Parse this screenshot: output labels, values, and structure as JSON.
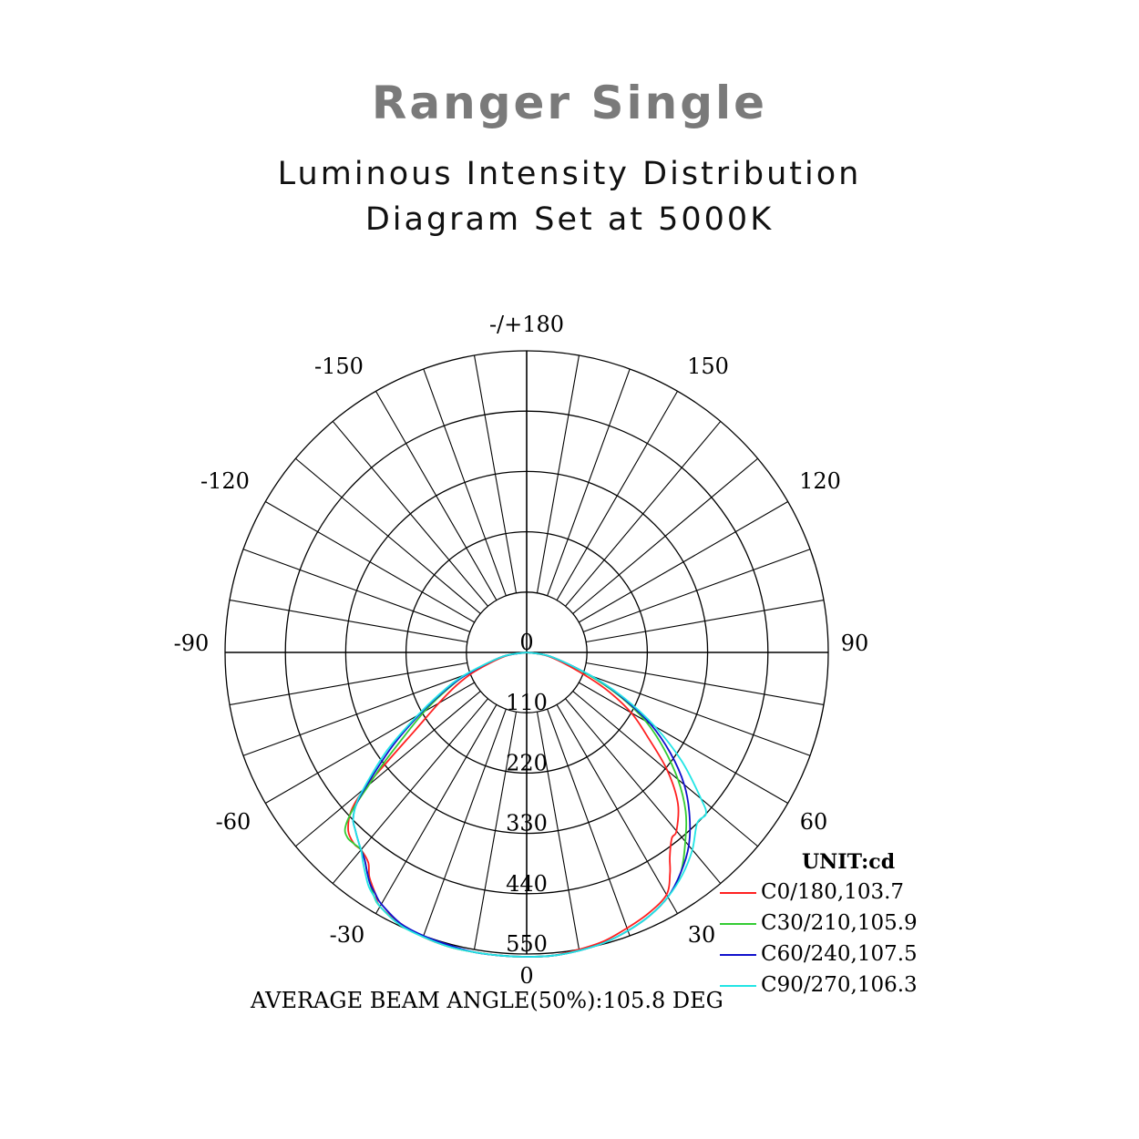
{
  "header": {
    "title": "Ranger Single",
    "subtitle_line1": "Luminous Intensity Distribution",
    "subtitle_line2": "Diagram Set at 5000K"
  },
  "chart_data": {
    "type": "polar",
    "angle_labels": [
      {
        "text": "-/+180",
        "angle": 180
      },
      {
        "text": "-150",
        "angle": -150
      },
      {
        "text": "150",
        "angle": 150
      },
      {
        "text": "-120",
        "angle": -120
      },
      {
        "text": "120",
        "angle": 120
      },
      {
        "text": "-90",
        "angle": -90
      },
      {
        "text": "90",
        "angle": 90
      },
      {
        "text": "-60",
        "angle": -60
      },
      {
        "text": "60",
        "angle": 60
      },
      {
        "text": "-30",
        "angle": -30
      },
      {
        "text": "30",
        "angle": 30
      },
      {
        "text": "0",
        "angle": 0
      }
    ],
    "radial_ticks": [
      "0",
      "110",
      "220",
      "330",
      "440",
      "550"
    ],
    "radial_max": 550,
    "unit_label": "UNIT:cd",
    "footer": "AVERAGE BEAM ANGLE(50%):105.8 DEG",
    "series": [
      {
        "name": "C0/180,103.7",
        "color": "#ff2020",
        "angles": [
          -90,
          -80,
          -70,
          -65,
          -60,
          -55,
          -52,
          -50,
          -48,
          -45,
          -42,
          -40,
          -37,
          -35,
          -32,
          -30,
          -25,
          -20,
          -15,
          -10,
          -5,
          0,
          5,
          10,
          15,
          20,
          25,
          30,
          33,
          35,
          38,
          40,
          45,
          50,
          55,
          60,
          65,
          70,
          80,
          90
        ],
        "values": [
          0,
          40,
          100,
          140,
          185,
          250,
          320,
          385,
          430,
          460,
          470,
          470,
          480,
          500,
          520,
          535,
          545,
          552,
          555,
          555,
          555,
          555,
          555,
          550,
          545,
          535,
          525,
          510,
          480,
          455,
          430,
          425,
          390,
          335,
          270,
          220,
          160,
          100,
          40,
          0
        ]
      },
      {
        "name": "C30/210,105.9",
        "color": "#33cc33",
        "angles": [
          -90,
          -80,
          -70,
          -65,
          -60,
          -55,
          -52,
          -50,
          -48,
          -46,
          -44,
          -42,
          -40,
          -38,
          -36,
          -34,
          -32,
          -30,
          -25,
          -20,
          -15,
          -10,
          -5,
          0,
          5,
          10,
          15,
          20,
          25,
          30,
          35,
          40,
          45,
          50,
          55,
          60,
          65,
          70,
          80,
          90
        ],
        "values": [
          0,
          45,
          115,
          160,
          215,
          280,
          335,
          375,
          425,
          460,
          470,
          470,
          470,
          480,
          495,
          510,
          525,
          535,
          548,
          552,
          555,
          555,
          555,
          555,
          555,
          552,
          548,
          540,
          530,
          515,
          490,
          450,
          410,
          360,
          305,
          250,
          185,
          120,
          45,
          0
        ]
      },
      {
        "name": "C60/240,107.5",
        "color": "#1010cc",
        "angles": [
          -90,
          -80,
          -70,
          -65,
          -60,
          -55,
          -50,
          -48,
          -46,
          -44,
          -42,
          -40,
          -38,
          -36,
          -34,
          -32,
          -30,
          -25,
          -20,
          -15,
          -10,
          -5,
          0,
          5,
          10,
          15,
          20,
          25,
          30,
          35,
          40,
          45,
          50,
          55,
          60,
          65,
          70,
          80,
          90
        ],
        "values": [
          0,
          45,
          115,
          165,
          225,
          300,
          385,
          420,
          440,
          450,
          460,
          470,
          480,
          495,
          510,
          520,
          530,
          545,
          550,
          552,
          555,
          555,
          555,
          555,
          552,
          548,
          540,
          530,
          515,
          490,
          460,
          420,
          375,
          320,
          260,
          190,
          125,
          45,
          0
        ]
      },
      {
        "name": "C90/270,106.3",
        "color": "#22e5e5",
        "angles": [
          -90,
          -80,
          -70,
          -65,
          -60,
          -55,
          -50,
          -48,
          -46,
          -44,
          -42,
          -40,
          -38,
          -36,
          -34,
          -32,
          -30,
          -25,
          -20,
          -15,
          -10,
          -5,
          0,
          5,
          10,
          15,
          20,
          25,
          30,
          35,
          40,
          45,
          48,
          50,
          55,
          60,
          65,
          70,
          80,
          90
        ],
        "values": [
          0,
          45,
          120,
          170,
          230,
          310,
          390,
          420,
          440,
          450,
          460,
          470,
          485,
          500,
          515,
          525,
          535,
          548,
          552,
          555,
          555,
          555,
          555,
          555,
          552,
          548,
          540,
          530,
          515,
          495,
          470,
          440,
          440,
          415,
          345,
          270,
          195,
          125,
          45,
          0
        ]
      }
    ]
  }
}
